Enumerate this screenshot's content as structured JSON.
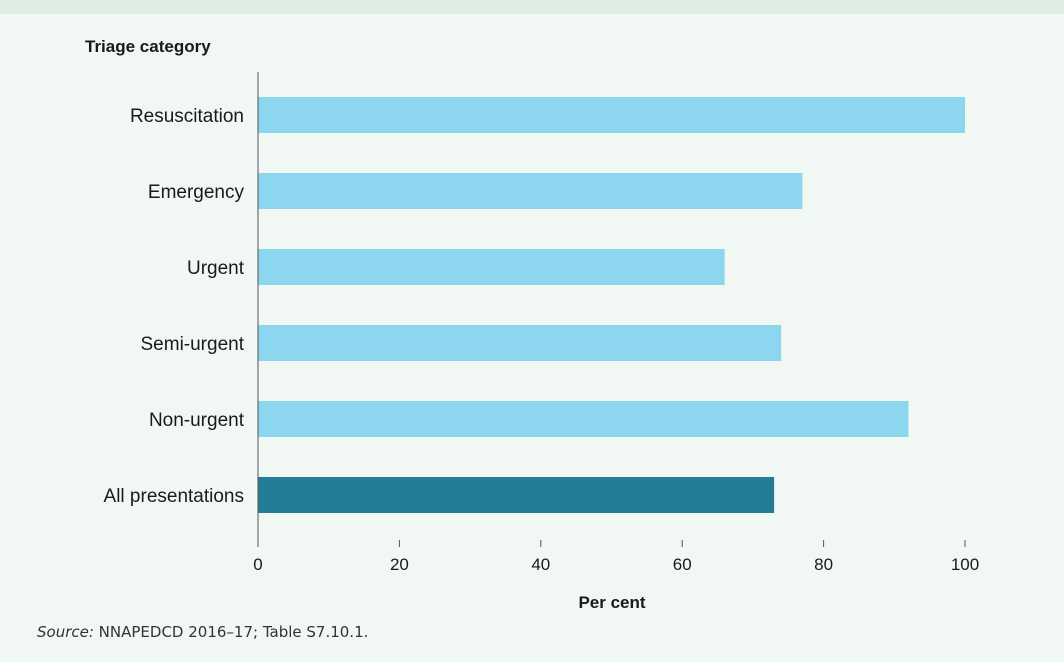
{
  "chart_data": {
    "type": "bar",
    "orientation": "horizontal",
    "title": "",
    "ylabel": "Triage category",
    "xlabel": "Per cent",
    "categories": [
      "Resuscitation",
      "Emergency",
      "Urgent",
      "Semi-urgent",
      "Non-urgent",
      "All presentations"
    ],
    "values": [
      100,
      77,
      66,
      74,
      92,
      73
    ],
    "xlim": [
      0,
      100
    ],
    "xticks": [
      0,
      20,
      40,
      60,
      80,
      100
    ],
    "colors": {
      "default": "#8dd6f0",
      "highlight": "#237d96",
      "highlight_category": "All presentations"
    },
    "grid": false
  },
  "source": {
    "label": "Source:",
    "text": " NNAPEDCD 2016–17; Table S7.10.1."
  }
}
